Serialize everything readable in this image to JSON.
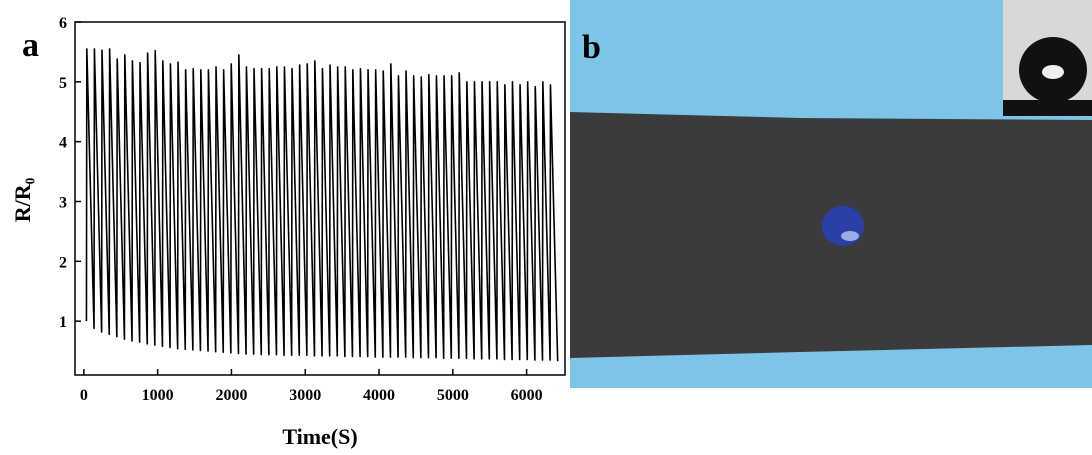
{
  "chart_data": {
    "type": "line",
    "panel_label": "a",
    "x_label": "Time(S)",
    "y_label": "R/R₀",
    "color": "#000000",
    "xlim": [
      -120,
      6520
    ],
    "xticks": [
      0,
      1000,
      2000,
      3000,
      4000,
      5000,
      6000
    ],
    "ylim": [
      0.1,
      6
    ],
    "yticks": [
      1,
      2,
      3,
      4,
      5,
      6
    ],
    "x": [
      35,
      40,
      138,
      143,
      241,
      246,
      344,
      349,
      447,
      452,
      550,
      555,
      653,
      658,
      756,
      761,
      859,
      864,
      962,
      967,
      1065,
      1070,
      1168,
      1173,
      1271,
      1276,
      1374,
      1379,
      1477,
      1482,
      1580,
      1585,
      1683,
      1688,
      1786,
      1791,
      1889,
      1894,
      1992,
      1997,
      2095,
      2100,
      2198,
      2203,
      2301,
      2306,
      2404,
      2409,
      2507,
      2512,
      2610,
      2615,
      2713,
      2718,
      2816,
      2821,
      2919,
      2924,
      3022,
      3027,
      3125,
      3130,
      3228,
      3233,
      3331,
      3336,
      3434,
      3439,
      3537,
      3542,
      3640,
      3645,
      3743,
      3748,
      3846,
      3851,
      3949,
      3954,
      4052,
      4057,
      4155,
      4160,
      4258,
      4263,
      4361,
      4366,
      4464,
      4469,
      4567,
      4572,
      4670,
      4675,
      4773,
      4778,
      4876,
      4881,
      4979,
      4984,
      5082,
      5087,
      5185,
      5190,
      5288,
      5293,
      5391,
      5396,
      5494,
      5499,
      5597,
      5602,
      5700,
      5705,
      5803,
      5808,
      5906,
      5911,
      6009,
      6014,
      6112,
      6117,
      6215,
      6220,
      6318,
      6323,
      6421
    ],
    "values": [
      1.0,
      5.55,
      0.88,
      5.55,
      0.82,
      5.53,
      0.78,
      5.55,
      0.74,
      5.38,
      0.7,
      5.45,
      0.67,
      5.35,
      0.65,
      5.32,
      0.62,
      5.48,
      0.6,
      5.52,
      0.58,
      5.35,
      0.56,
      5.3,
      0.54,
      5.33,
      0.53,
      5.2,
      0.52,
      5.22,
      0.51,
      5.2,
      0.5,
      5.2,
      0.49,
      5.25,
      0.48,
      5.2,
      0.47,
      5.3,
      0.46,
      5.45,
      0.45,
      5.25,
      0.45,
      5.22,
      0.44,
      5.22,
      0.44,
      5.22,
      0.44,
      5.25,
      0.43,
      5.25,
      0.43,
      5.22,
      0.43,
      5.28,
      0.43,
      5.3,
      0.42,
      5.35,
      0.42,
      5.22,
      0.42,
      5.28,
      0.42,
      5.25,
      0.41,
      5.25,
      0.41,
      5.2,
      0.41,
      5.22,
      0.41,
      5.2,
      0.4,
      5.2,
      0.4,
      5.18,
      0.4,
      5.3,
      0.4,
      5.1,
      0.4,
      5.18,
      0.39,
      5.1,
      0.39,
      5.08,
      0.39,
      5.12,
      0.39,
      5.1,
      0.38,
      5.1,
      0.38,
      5.1,
      0.38,
      5.15,
      0.38,
      5.0,
      0.37,
      5.0,
      0.37,
      5.0,
      0.37,
      5.0,
      0.37,
      5.0,
      0.36,
      4.95,
      0.36,
      5.0,
      0.36,
      4.95,
      0.36,
      5.0,
      0.35,
      4.92,
      0.35,
      5.0,
      0.35,
      4.95,
      0.33
    ]
  },
  "photo": {
    "panel_label": "b"
  }
}
